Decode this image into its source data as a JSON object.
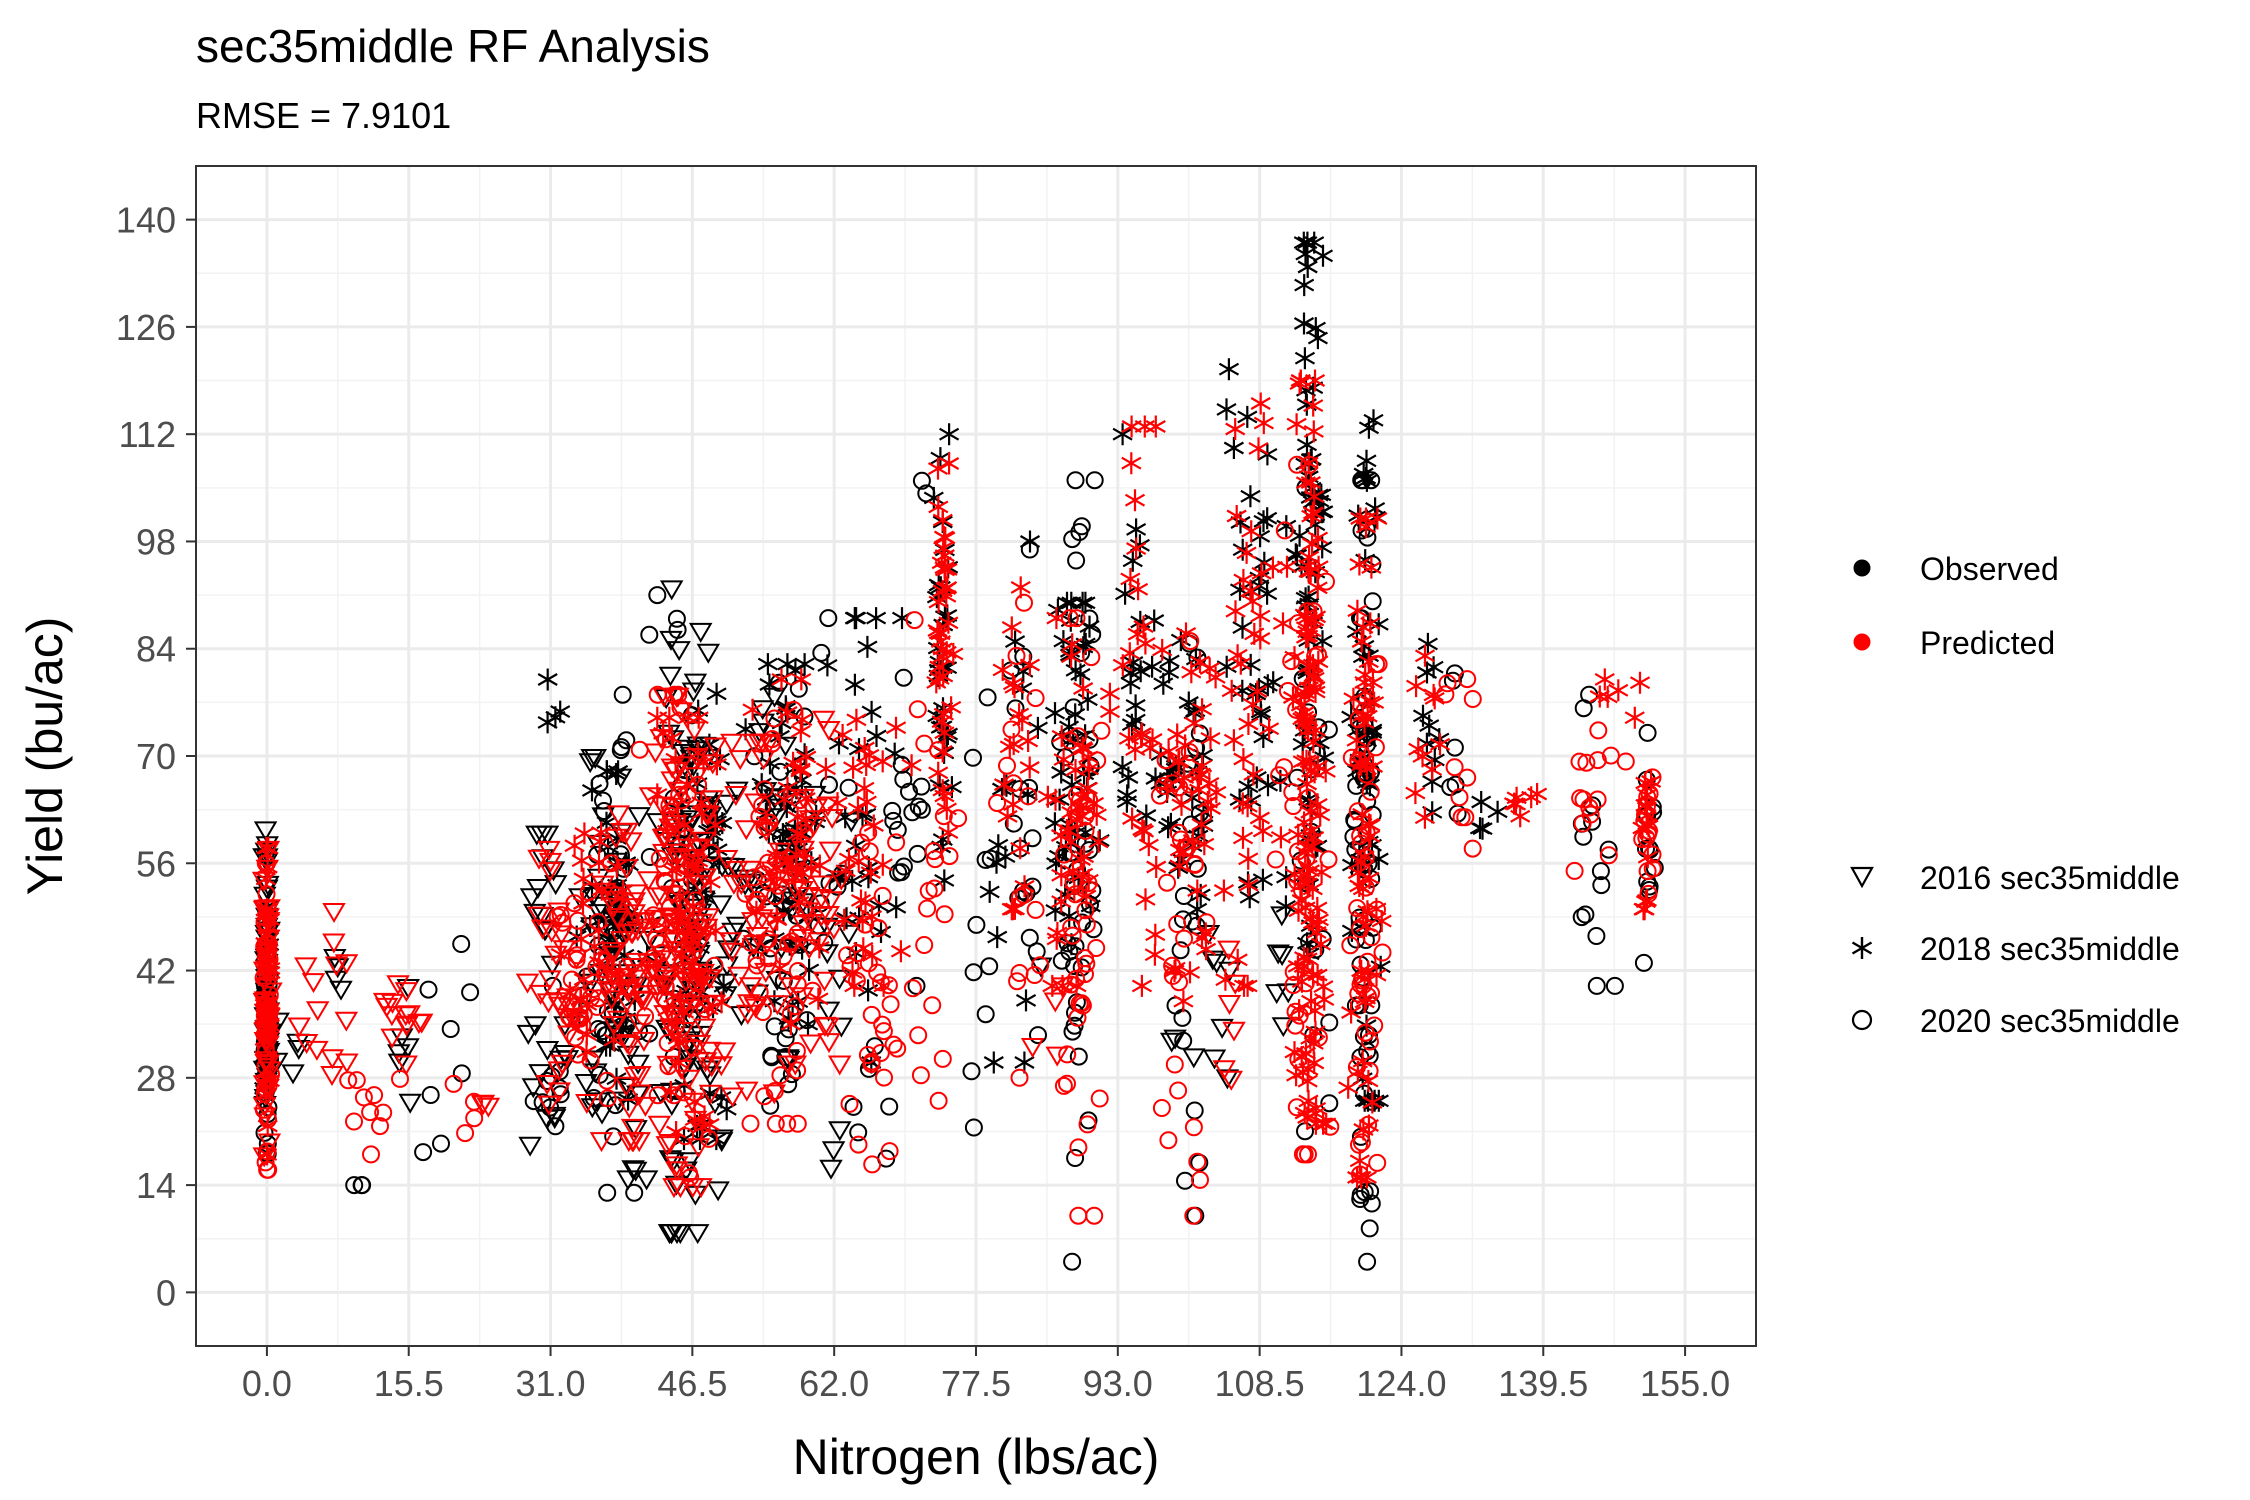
{
  "chart_data": {
    "type": "scatter",
    "title": "sec35middle RF Analysis",
    "subtitle": "RMSE = 7.9101",
    "xlabel": "Nitrogen (lbs/ac)",
    "ylabel": "Yield (bu/ac)",
    "xlim": [
      -7.75,
      162.75
    ],
    "ylim": [
      -7,
      147
    ],
    "x_ticks": [
      "0.0",
      "15.5",
      "31.0",
      "46.5",
      "62.0",
      "77.5",
      "93.0",
      "108.5",
      "124.0",
      "139.5",
      "155.0"
    ],
    "x_tick_values": [
      0,
      15.5,
      31,
      46.5,
      62,
      77.5,
      93,
      108.5,
      124,
      139.5,
      155
    ],
    "y_ticks": [
      "0",
      "14",
      "28",
      "42",
      "56",
      "70",
      "84",
      "98",
      "112",
      "126",
      "140"
    ],
    "y_tick_values": [
      0,
      14,
      28,
      42,
      56,
      70,
      84,
      98,
      112,
      126,
      140
    ],
    "grid": true,
    "legend_placement": "right",
    "color_legend": [
      {
        "label": "Observed",
        "color": "#000000"
      },
      {
        "label": "Predicted",
        "color": "#ff0000"
      }
    ],
    "shape_legend": [
      {
        "label": "2016 sec35middle",
        "shape": "triangle-down"
      },
      {
        "label": "2018 sec35middle",
        "shape": "asterisk"
      },
      {
        "label": "2020 sec35middle",
        "shape": "circle"
      }
    ],
    "series": [
      {
        "type": "Observed",
        "year": "2016",
        "shape": "triangle-down",
        "color": "#000000",
        "clusters": [
          [
            0,
            18,
            62,
            0.3,
            35
          ],
          [
            3,
            28,
            36,
            2,
            5
          ],
          [
            8,
            28,
            50,
            1,
            4
          ],
          [
            15,
            25,
            47,
            2,
            6
          ],
          [
            31,
            18,
            60,
            2,
            26
          ],
          [
            38,
            15,
            70,
            3,
            50
          ],
          [
            45.5,
            8,
            92,
            2.5,
            80
          ],
          [
            51,
            20,
            80,
            3,
            28
          ],
          [
            57,
            30,
            78,
            2.5,
            30
          ],
          [
            62,
            12,
            62,
            1.5,
            10
          ],
          [
            84,
            42,
            45,
            1,
            1
          ],
          [
            104,
            22,
            50,
            2,
            8
          ],
          [
            111,
            35,
            60,
            1,
            6
          ],
          [
            99,
            32,
            34,
            1,
            2
          ]
        ]
      },
      {
        "type": "Observed",
        "year": "2018",
        "shape": "asterisk",
        "color": "#000000",
        "clusters": [
          [
            0,
            20,
            55,
            0.3,
            30
          ],
          [
            31,
            70,
            83,
            1.5,
            4
          ],
          [
            38,
            25,
            68,
            3,
            40
          ],
          [
            48,
            20,
            80,
            3,
            40
          ],
          [
            57,
            35,
            82,
            2.5,
            40
          ],
          [
            65,
            30,
            88,
            3,
            30
          ],
          [
            74,
            50,
            112,
            0.8,
            30
          ],
          [
            82,
            30,
            98,
            2,
            16
          ],
          [
            88,
            42,
            90,
            2,
            40
          ],
          [
            95,
            45,
            112,
            1.5,
            20
          ],
          [
            100,
            50,
            88,
            2.5,
            30
          ],
          [
            108,
            40,
            124,
            2.5,
            40
          ],
          [
            114,
            38,
            137,
            1,
            60
          ],
          [
            120,
            25,
            116,
            1.5,
            40
          ],
          [
            127,
            55,
            90,
            1,
            10
          ],
          [
            133,
            58,
            66,
            1,
            4
          ]
        ]
      },
      {
        "type": "Observed",
        "year": "2020",
        "shape": "circle",
        "color": "#000000",
        "clusters": [
          [
            0,
            12,
            48,
            0.3,
            35
          ],
          [
            10,
            14,
            14,
            1,
            3
          ],
          [
            20,
            14,
            49,
            3,
            8
          ],
          [
            31,
            20,
            40,
            1.5,
            10
          ],
          [
            38,
            13,
            78,
            2.5,
            40
          ],
          [
            46,
            10,
            91,
            3,
            30
          ],
          [
            56,
            20,
            80,
            3,
            30
          ],
          [
            62,
            40,
            88,
            2,
            10
          ],
          [
            66,
            3,
            40,
            2,
            6
          ],
          [
            70,
            40,
            84,
            1.5,
            16
          ],
          [
            72,
            100,
            120,
            0.5,
            2
          ],
          [
            78,
            20,
            82,
            2,
            10
          ],
          [
            83,
            30,
            102,
            2,
            16
          ],
          [
            89,
            4,
            106,
            1.5,
            40
          ],
          [
            101,
            10,
            88,
            1.5,
            20
          ],
          [
            114,
            18,
            105,
            2,
            20
          ],
          [
            120,
            4,
            106,
            1,
            60
          ],
          [
            130,
            50,
            87,
            1.5,
            6
          ],
          [
            145,
            40,
            78,
            2.5,
            14
          ],
          [
            151,
            43,
            78,
            0.5,
            14
          ]
        ]
      },
      {
        "type": "Predicted",
        "year": "2016",
        "shape": "triangle-down",
        "color": "#ff0000",
        "clusters": [
          [
            0,
            18,
            58,
            0.3,
            40
          ],
          [
            6,
            22,
            52,
            2.5,
            14
          ],
          [
            15,
            30,
            42,
            2.5,
            14
          ],
          [
            24,
            24,
            25,
            1,
            3
          ],
          [
            32,
            22,
            58,
            2.5,
            30
          ],
          [
            40,
            20,
            65,
            3,
            70
          ],
          [
            46,
            14,
            78,
            3,
            100
          ],
          [
            53,
            24,
            72,
            3,
            40
          ],
          [
            60,
            30,
            75,
            2.5,
            40
          ],
          [
            86,
            28,
            45,
            1.5,
            4
          ],
          [
            105,
            28,
            45,
            1.5,
            6
          ]
        ]
      },
      {
        "type": "Predicted",
        "year": "2018",
        "shape": "asterisk",
        "color": "#ff0000",
        "clusters": [
          [
            0,
            18,
            58,
            0.3,
            40
          ],
          [
            36,
            30,
            60,
            2.5,
            30
          ],
          [
            46,
            20,
            75,
            3,
            60
          ],
          [
            58,
            35,
            80,
            3,
            40
          ],
          [
            66,
            40,
            78,
            3,
            30
          ],
          [
            74,
            60,
            110,
            0.8,
            40
          ],
          [
            82,
            50,
            92,
            2,
            20
          ],
          [
            88,
            40,
            88,
            2,
            40
          ],
          [
            95,
            40,
            113,
            2,
            30
          ],
          [
            101,
            38,
            86,
            2.5,
            40
          ],
          [
            108,
            40,
            116,
            2.5,
            40
          ],
          [
            114,
            22,
            119,
            1.2,
            120
          ],
          [
            120,
            15,
            101,
            1.2,
            60
          ],
          [
            127,
            60,
            85,
            2,
            10
          ],
          [
            137,
            62,
            66,
            2,
            6
          ],
          [
            148,
            75,
            80,
            2,
            6
          ],
          [
            151,
            50,
            70,
            0.5,
            14
          ]
        ]
      },
      {
        "type": "Predicted",
        "year": "2020",
        "shape": "circle",
        "color": "#ff0000",
        "clusters": [
          [
            0,
            16,
            56,
            0.3,
            40
          ],
          [
            12,
            18,
            30,
            3,
            10
          ],
          [
            22,
            20,
            28,
            2,
            4
          ],
          [
            35,
            24,
            56,
            2.5,
            30
          ],
          [
            45,
            15,
            78,
            3,
            60
          ],
          [
            56,
            22,
            76,
            3,
            50
          ],
          [
            66,
            12,
            60,
            2.5,
            30
          ],
          [
            73,
            25,
            96,
            2,
            20
          ],
          [
            82,
            28,
            90,
            2,
            16
          ],
          [
            89,
            10,
            88,
            2,
            40
          ],
          [
            100,
            10,
            85,
            2,
            30
          ],
          [
            113,
            18,
            108,
            2,
            40
          ],
          [
            120,
            14,
            82,
            1.5,
            40
          ],
          [
            130,
            55,
            82,
            2,
            10
          ],
          [
            145,
            55,
            76,
            2.5,
            14
          ],
          [
            151,
            52,
            68,
            0.5,
            14
          ]
        ]
      }
    ]
  }
}
